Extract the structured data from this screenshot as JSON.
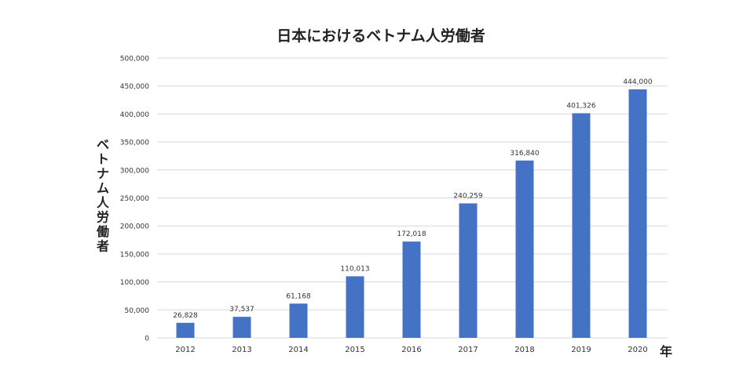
{
  "chart_data": {
    "type": "bar",
    "title": "日本におけるベトナム人労働者",
    "ylabel": "ベトナム人労働者",
    "xlabel": "年",
    "categories": [
      "2012",
      "2013",
      "2014",
      "2015",
      "2016",
      "2017",
      "2018",
      "2019",
      "2020"
    ],
    "values": [
      26828,
      37537,
      61168,
      110013,
      172018,
      240259,
      316840,
      401326,
      444000
    ],
    "value_labels": [
      "26,828",
      "37,537",
      "61,168",
      "110,013",
      "172,018",
      "240,259",
      "316,840",
      "401,326",
      "444,000"
    ],
    "ylim": [
      0,
      500000
    ],
    "yticks": [
      0,
      50000,
      100000,
      150000,
      200000,
      250000,
      300000,
      350000,
      400000,
      450000,
      500000
    ],
    "ytick_labels": [
      "0",
      "50,000",
      "100,000",
      "150,000",
      "200,000",
      "250,000",
      "300,000",
      "350,000",
      "400,000",
      "450,000",
      "500,000"
    ],
    "grid": true,
    "legend": "none",
    "bar_color": "#4472c4",
    "grid_color": "#d9d9d9",
    "text_color": "#333333"
  }
}
